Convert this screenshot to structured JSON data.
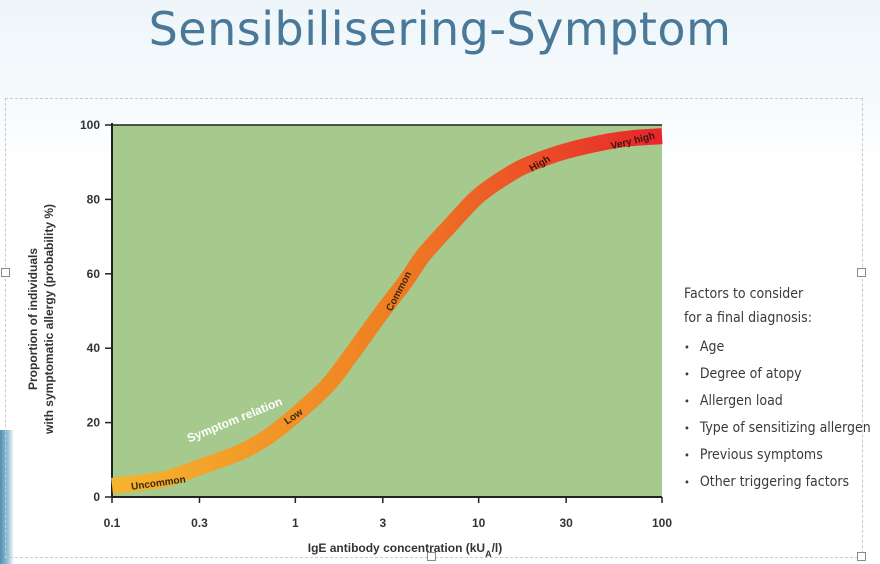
{
  "slide": {
    "title": "Sensibilisering-Symptom"
  },
  "chart_data": {
    "type": "line",
    "xscale": "log",
    "xlim": [
      0.1,
      100
    ],
    "ylim": [
      0,
      100
    ],
    "xticks": [
      0.1,
      0.3,
      1,
      3,
      10,
      30,
      100
    ],
    "xtick_labels": [
      "0.1",
      "0.3",
      "1",
      "3",
      "10",
      "30",
      "100"
    ],
    "yticks": [
      0,
      20,
      40,
      60,
      80,
      100
    ],
    "ytick_labels": [
      "0",
      "20",
      "40",
      "60",
      "80",
      "100"
    ],
    "xlabel": "IgE antibody concentration (kU",
    "xlabel_sub": "A",
    "xlabel_end": "/l)",
    "ylabel_line1": "Proportion of individuals",
    "ylabel_line2": "with symptomatic allergy (probability %)",
    "grid": false,
    "background_color": "#a6c98e",
    "series": [
      {
        "x": [
          0.1,
          0.15,
          0.2,
          0.3,
          0.5,
          0.7,
          1,
          1.5,
          2,
          3,
          4,
          5,
          7,
          10,
          15,
          20,
          30,
          50,
          70,
          100
        ],
        "y": [
          3,
          4,
          5,
          8,
          12,
          16,
          22,
          30,
          38,
          50,
          58,
          65,
          73,
          81,
          87,
          90,
          93,
          95.5,
          96.5,
          97
        ],
        "color_start": "#f5b52e",
        "color_mid": "#ef7f22",
        "color_end": "#e8252b"
      }
    ],
    "annotations": [
      {
        "text": "Uncommon",
        "x": 0.18,
        "y": 4
      },
      {
        "text": "Low",
        "x": 1,
        "y": 22
      },
      {
        "text": "Common",
        "x": 3.8,
        "y": 56
      },
      {
        "text": "High",
        "x": 22,
        "y": 90
      },
      {
        "text": "Very high",
        "x": 70,
        "y": 96
      },
      {
        "text": "Symptom relation",
        "x": 0.5,
        "y": 16
      }
    ]
  },
  "side_panel": {
    "heading_line1": "Factors to consider",
    "heading_line2": "for a final diagnosis:",
    "items": [
      "Age",
      "Degree of atopy",
      "Allergen load",
      "Type of sensitizing allergen",
      "Previous symptoms",
      "Other triggering factors"
    ]
  },
  "footer": {
    "text": "... ... ... ... ... ... ... ... ... ... ... ... ... ... ... ... ... ..."
  }
}
